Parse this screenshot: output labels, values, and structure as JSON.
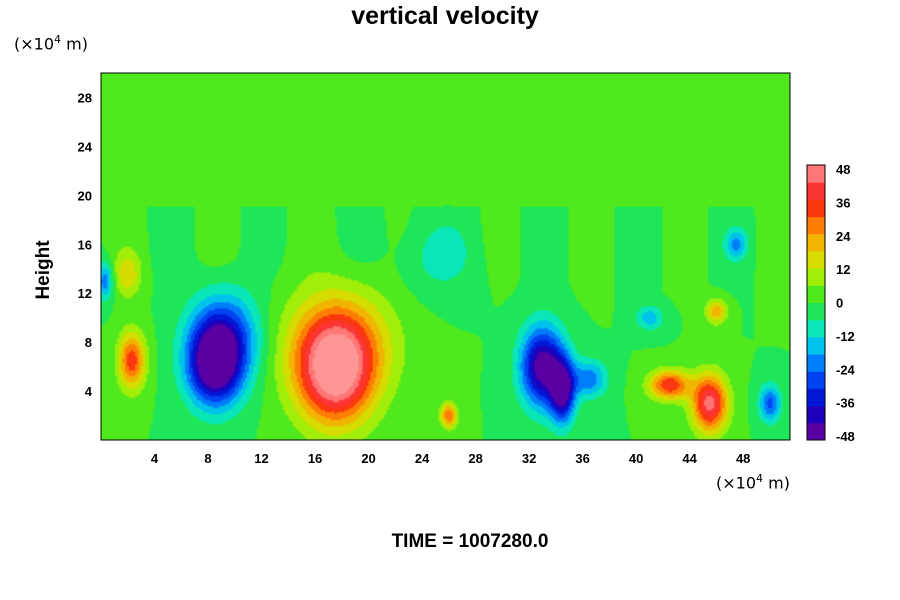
{
  "chart_data": {
    "type": "heatmap",
    "title": "vertical velocity",
    "ylabel": "Height",
    "y_unit": {
      "prefix": "(×10",
      "exp": "4",
      "suffix": " m)"
    },
    "x_unit": {
      "prefix": "(×10",
      "exp": "4",
      "suffix": " m)"
    },
    "xlim": [
      0,
      51.5
    ],
    "ylim": [
      0,
      30
    ],
    "x_ticks": [
      4,
      8,
      12,
      16,
      20,
      24,
      28,
      32,
      36,
      40,
      44,
      48
    ],
    "y_ticks": [
      4,
      8,
      12,
      16,
      20,
      24,
      28
    ],
    "colorbar": {
      "range": [
        -48,
        48
      ],
      "tick_values": [
        -48,
        -36,
        -24,
        -12,
        0,
        12,
        24,
        36,
        48
      ],
      "tick_labels": [
        "-48",
        "-36",
        "-24",
        "-12",
        "0",
        "12",
        "24",
        "36",
        "48"
      ]
    },
    "features": [
      {
        "x": 17.5,
        "y": 5.5,
        "peak": 48,
        "rx": 2.8,
        "ry": 4.2
      },
      {
        "x": 17.8,
        "y": 8.0,
        "peak": 22,
        "rx": 4.0,
        "ry": 4.5
      },
      {
        "x": 45.5,
        "y": 3.0,
        "peak": 45,
        "rx": 1.3,
        "ry": 2.3
      },
      {
        "x": 42.5,
        "y": 4.5,
        "peak": 36,
        "rx": 1.5,
        "ry": 1.2
      },
      {
        "x": 2.3,
        "y": 6.5,
        "peak": 34,
        "rx": 1.0,
        "ry": 2.3
      },
      {
        "x": 26.0,
        "y": 2.0,
        "peak": 30,
        "rx": 0.6,
        "ry": 1.0
      },
      {
        "x": 8.5,
        "y": 6.0,
        "peak": -48,
        "rx": 2.0,
        "ry": 3.2
      },
      {
        "x": 9.2,
        "y": 8.5,
        "peak": -30,
        "rx": 2.5,
        "ry": 3.5
      },
      {
        "x": 33.0,
        "y": 6.0,
        "peak": -48,
        "rx": 1.6,
        "ry": 3.2
      },
      {
        "x": 34.5,
        "y": 4.0,
        "peak": -44,
        "rx": 0.9,
        "ry": 2.5
      },
      {
        "x": 36.5,
        "y": 5.0,
        "peak": -22,
        "rx": 1.3,
        "ry": 1.5
      },
      {
        "x": 0.3,
        "y": 13.0,
        "peak": -22,
        "rx": 0.6,
        "ry": 1.5
      },
      {
        "x": 50.0,
        "y": 3.0,
        "peak": -26,
        "rx": 0.8,
        "ry": 1.5
      },
      {
        "x": 47.5,
        "y": 16.0,
        "peak": -18,
        "rx": 0.8,
        "ry": 1.2
      },
      {
        "x": 41.0,
        "y": 10.0,
        "peak": -16,
        "rx": 1.0,
        "ry": 1.0
      },
      {
        "x": 2.0,
        "y": 13.5,
        "peak": 16,
        "rx": 1.0,
        "ry": 1.8
      },
      {
        "x": 46.0,
        "y": 10.5,
        "peak": 22,
        "rx": 0.8,
        "ry": 1.0
      },
      {
        "x": 25.0,
        "y": 15.0,
        "peak": -8,
        "rx": 3.0,
        "ry": 3.0
      }
    ]
  },
  "time_label": "TIME = 1007280.0"
}
